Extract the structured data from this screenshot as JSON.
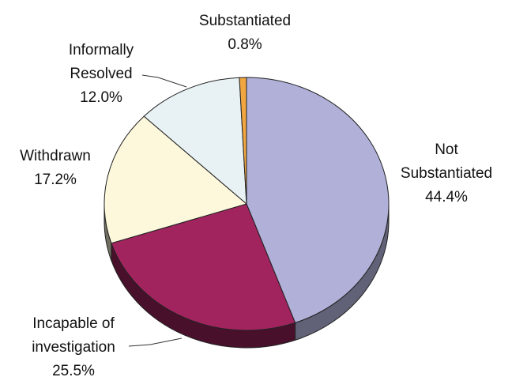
{
  "chart_data": {
    "type": "pie",
    "categories": [
      "Not Substantiated",
      "Incapable of investigation",
      "Withdrawn",
      "Informally Resolved",
      "Substantiated"
    ],
    "values": [
      44.4,
      25.5,
      17.2,
      12.0,
      0.8
    ],
    "value_labels": [
      "44.4%",
      "25.5%",
      "17.2%",
      "12.0%",
      "0.8%"
    ],
    "colors": [
      "#b0b0d9",
      "#a2245f",
      "#fdf8dc",
      "#e8f2f4",
      "#f2a640"
    ]
  }
}
